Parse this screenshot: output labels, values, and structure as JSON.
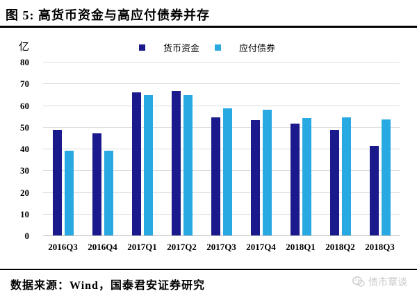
{
  "figure": {
    "title": "图 5: 高货币资金与高应付债券并存",
    "unit_label": "亿",
    "source_note": "数据来源：Wind，国泰君安证券研究",
    "watermark_text": "债市覃谈"
  },
  "colors": {
    "series_monetary_funds": "#1A1A8C",
    "series_bonds_payable": "#29A9E1",
    "gridline": "#DCDCDC",
    "axis_line": "#BFBFBF",
    "rule": "#000000",
    "watermark": "#C8C8C8"
  },
  "chart_data": {
    "type": "bar",
    "title": "高货币资金与高应付债券并存",
    "ylabel": "亿",
    "xlabel": "",
    "ylim": [
      0,
      80
    ],
    "ytick_step": 10,
    "yticks": [
      0,
      10,
      20,
      30,
      40,
      50,
      60,
      70,
      80
    ],
    "grid": true,
    "legend_position": "top",
    "categories": [
      "2016Q3",
      "2016Q4",
      "2017Q1",
      "2017Q2",
      "2017Q3",
      "2017Q4",
      "2018Q1",
      "2018Q2",
      "2018Q3"
    ],
    "series": [
      {
        "name": "货币资金",
        "key": "monetary-funds",
        "color": "#1A1A8C",
        "values": [
          48.9,
          47.3,
          66.2,
          66.9,
          54.8,
          53.3,
          51.7,
          49.0,
          41.5
        ]
      },
      {
        "name": "应付债券",
        "key": "bonds-payable",
        "color": "#29A9E1",
        "values": [
          39.4,
          39.4,
          64.9,
          64.9,
          59.0,
          58.3,
          54.5,
          54.6,
          53.8
        ]
      }
    ]
  }
}
